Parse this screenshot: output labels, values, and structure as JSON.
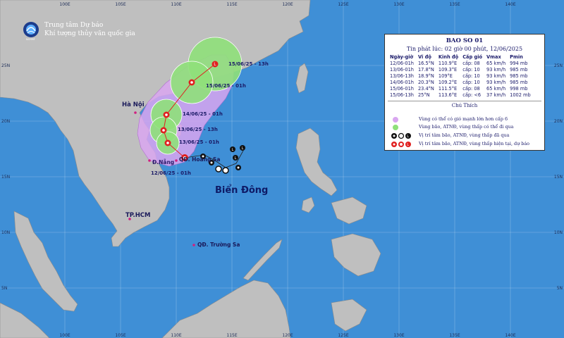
{
  "header": {
    "org_line1": "Trung tâm Dự báo",
    "org_line2": "Khí tượng thủy văn quốc gia",
    "logo_text": "NCHMF"
  },
  "axes": {
    "top_longitudes": [
      "100E",
      "105E",
      "110E",
      "115E",
      "120E",
      "125E",
      "130E",
      "135E",
      "140E"
    ],
    "bottom_longitudes": [
      "100E",
      "105E",
      "110E",
      "115E",
      "120E",
      "125E",
      "130E",
      "135E",
      "140E"
    ],
    "left_latitudes": [
      "25N",
      "20N",
      "15N",
      "10N",
      "5N"
    ],
    "right_latitudes": [
      "25N",
      "20N",
      "15N",
      "10N",
      "5N"
    ]
  },
  "places": {
    "hanoi": "Hà Nội",
    "danang": "Đ.Nẵng",
    "hoang_sa": "QĐ. Hoàng Sa",
    "hcm": "TP.HCM",
    "truong_sa": "QĐ. Trường Sa",
    "sea": "Biển Đông"
  },
  "track_labels": [
    "12/06/25 - 01h",
    "13/06/25 - 01h",
    "13/06/25 - 13h",
    "14/06/25 - 01h",
    "15/06/25 - 01h",
    "15/06/25 - 13h"
  ],
  "bulletin": {
    "title": "BAO SO 01",
    "issued": "Tin phát lúc: 02 giờ 00 phút, 12/06/2025",
    "columns": [
      "Ngày-giờ",
      "Vĩ độ",
      "Kinh độ",
      "Cấp gió",
      "Vmax",
      "Pmin"
    ],
    "rows": [
      [
        "12/06-01h",
        "16.5°N",
        "110.9°E",
        "cấp: 08",
        "65 km/h",
        "994 mb"
      ],
      [
        "13/06-01h",
        "17.8°N",
        "109.3°E",
        "cấp: 10",
        "93 km/h",
        "985 mb"
      ],
      [
        "13/06-13h",
        "18.9°N",
        "109°E",
        "cấp: 10",
        "93 km/h",
        "985 mb"
      ],
      [
        "14/06-01h",
        "20.3°N",
        "109.2°E",
        "cấp: 10",
        "93 km/h",
        "985 mb"
      ],
      [
        "15/06-01h",
        "23.4°N",
        "111.5°E",
        "cấp: 08",
        "65 km/h",
        "998 mb"
      ],
      [
        "15/06-13h",
        "25°N",
        "113.6°E",
        "cấp: <6",
        "37 km/h",
        "1002 mb"
      ]
    ],
    "legend_title": "Chú Thích",
    "legend": [
      {
        "text": "Vùng có thể có gió mạnh lớn hơn cấp 6",
        "color": "#d9a6f0"
      },
      {
        "text": "Vùng bão, ATNĐ, vùng thấp có thể đi qua",
        "color": "#8fe07a"
      },
      {
        "text": "Vị trí tâm bão, ATNĐ, vùng thấp đã qua",
        "color": "#000000"
      },
      {
        "text": "Vị trí tâm bão, ATNĐ, vùng thấp hiện tại, dự báo",
        "color": "#e02020"
      }
    ]
  },
  "colors": {
    "sea": "#3f8fd6",
    "land": "#bfbfbf",
    "wind_zone": "#d9a6f0",
    "storm_zone": "#8fe07a",
    "forecast_symbol": "#e02020",
    "past_symbol": "#000000"
  }
}
